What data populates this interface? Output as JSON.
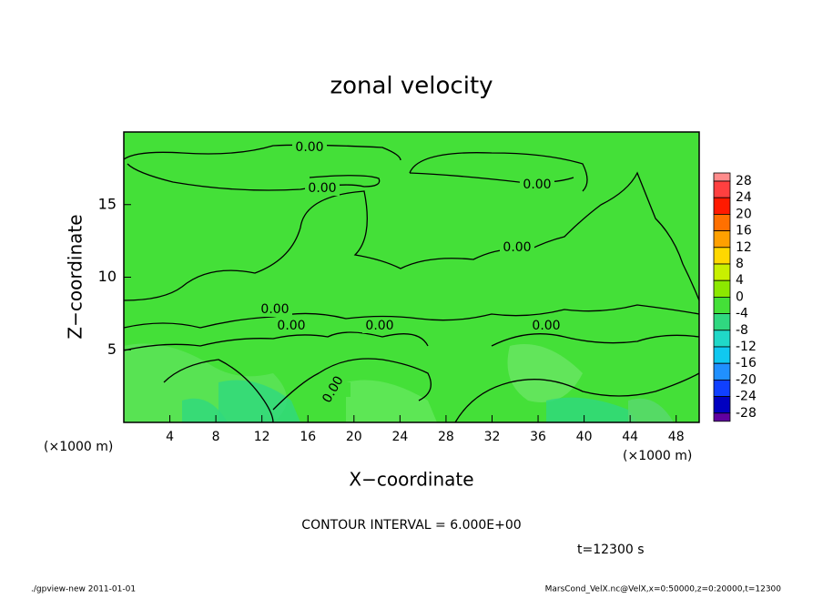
{
  "chart_data": {
    "type": "contour",
    "title": "zonal velocity",
    "x_label": "X−coordinate",
    "y_label": "Z−coordinate",
    "x_unit_left": "(×1000 m)",
    "x_unit_right": "(×1000 m)",
    "xlim": [
      0,
      50
    ],
    "ylim": [
      0,
      20
    ],
    "xticks": [
      4,
      8,
      12,
      16,
      20,
      24,
      28,
      32,
      36,
      40,
      44,
      48
    ],
    "yticks": [
      5,
      10,
      15
    ],
    "contour_labels": [
      "0.00",
      "0.00",
      "0.00",
      "0.00",
      "0.00",
      "0.00",
      "0.00",
      "0.00",
      "0.00"
    ],
    "contour_interval": "CONTOUR INTERVAL = 6.000E+00",
    "time_label": "t=12300 s",
    "footer_left": "./gpview-new   2011-01-01",
    "footer_right": "MarsCond_VelX.nc@VelX,x=0:50000,z=0:20000,t=12300",
    "colorbar": {
      "levels": [
        28,
        24,
        20,
        16,
        12,
        8,
        4,
        0,
        -4,
        -8,
        -12,
        -16,
        -20,
        -24,
        -28
      ],
      "colors": [
        "#ff8c8c",
        "#ff4040",
        "#ff1a00",
        "#ff7000",
        "#ffa000",
        "#ffd800",
        "#c8f000",
        "#8ce800",
        "#44e038",
        "#30d880",
        "#20d8c8",
        "#10c8f0",
        "#2090ff",
        "#1040ff",
        "#0000c0",
        "#6000a0"
      ]
    }
  }
}
